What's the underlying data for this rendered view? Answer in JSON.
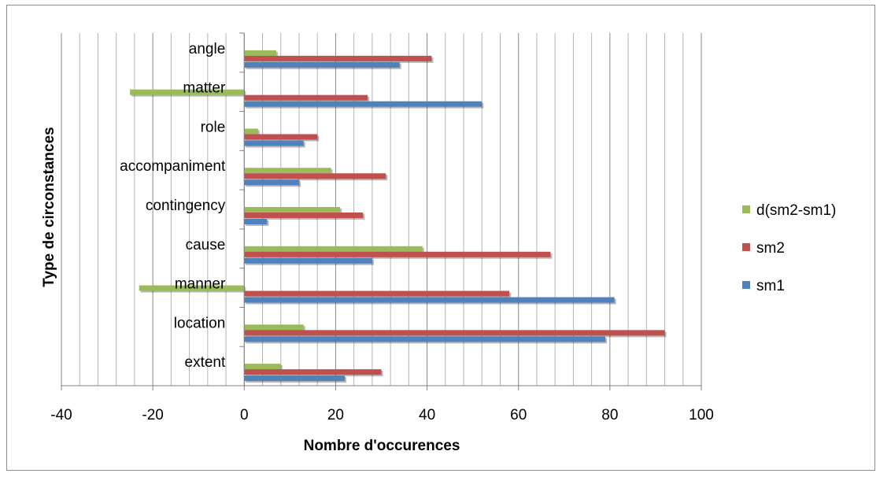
{
  "chart_data": {
    "type": "bar",
    "orientation": "horizontal",
    "title": "",
    "xlabel": "Nombre d'occurences",
    "ylabel": "Type de circonstances",
    "xlim": [
      -40,
      100
    ],
    "xticks": [
      -40,
      -20,
      0,
      20,
      40,
      60,
      80,
      100
    ],
    "minor_gridline_step": 4,
    "grid": true,
    "legend_position": "right",
    "categories": [
      "angle",
      "matter",
      "role",
      "accompaniment",
      "contingency",
      "cause",
      "manner",
      "location",
      "extent"
    ],
    "series": [
      {
        "name": "d(sm2-sm1)",
        "color": "#9bbb59",
        "values": [
          7,
          -25,
          3,
          19,
          21,
          39,
          -23,
          13,
          8
        ]
      },
      {
        "name": "sm2",
        "color": "#c0504d",
        "values": [
          41,
          27,
          16,
          31,
          26,
          67,
          58,
          92,
          30
        ]
      },
      {
        "name": "sm1",
        "color": "#4f81bd",
        "values": [
          34,
          52,
          13,
          12,
          5,
          28,
          81,
          79,
          22
        ]
      }
    ]
  }
}
